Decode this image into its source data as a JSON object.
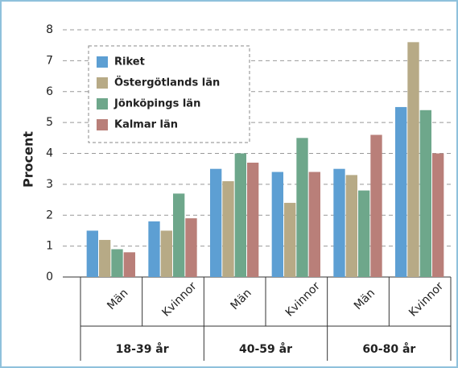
{
  "chart_data": {
    "type": "bar",
    "ylabel": "Procent",
    "categories": [
      "Män",
      "Kvinnor",
      "Män",
      "Kvinnor",
      "Män",
      "Kvinnor"
    ],
    "category_groups": [
      "18-39 år",
      "40-59 år",
      "60-80 år"
    ],
    "series": [
      {
        "name": "Riket",
        "color": "#5d9fd3",
        "values": [
          1.5,
          1.8,
          3.5,
          3.4,
          3.5,
          5.5
        ]
      },
      {
        "name": "Östergötlands län",
        "color": "#b7aa86",
        "values": [
          1.2,
          1.5,
          3.1,
          2.4,
          3.3,
          7.6
        ]
      },
      {
        "name": "Jönköpings län",
        "color": "#6ea78b",
        "values": [
          0.9,
          2.7,
          4.0,
          4.5,
          2.8,
          5.4
        ]
      },
      {
        "name": "Kalmar län",
        "color": "#b97f79",
        "values": [
          0.8,
          1.9,
          3.7,
          3.4,
          4.6,
          4.0
        ]
      }
    ],
    "ylim": [
      0,
      8
    ],
    "yticks": [
      0,
      1,
      2,
      3,
      4,
      5,
      6,
      7,
      8
    ],
    "grid": true,
    "legend": "upper left"
  }
}
